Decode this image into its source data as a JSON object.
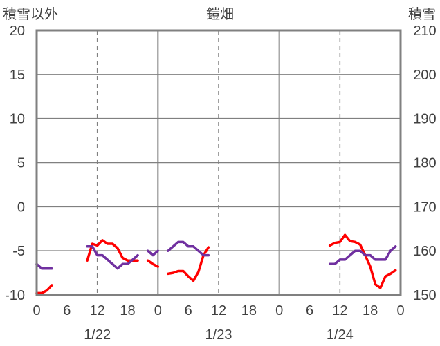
{
  "chart_data": {
    "type": "line",
    "title": "鎧畑",
    "ylabel_left": "積雪以外",
    "ylabel_right": "積雪",
    "ylim_left": [
      -10,
      20
    ],
    "ylim_right": [
      150,
      210
    ],
    "yticks_left": [
      "20",
      "15",
      "10",
      "5",
      "0",
      "-5",
      "-10"
    ],
    "yticks_right": [
      "210",
      "200",
      "190",
      "180",
      "170",
      "160",
      "150"
    ],
    "xlim": [
      0,
      72
    ],
    "xticks": [
      {
        "x": 0,
        "label": "0"
      },
      {
        "x": 6,
        "label": "6"
      },
      {
        "x": 12,
        "label": "12"
      },
      {
        "x": 18,
        "label": "18"
      },
      {
        "x": 24,
        "label": "0"
      },
      {
        "x": 30,
        "label": "6"
      },
      {
        "x": 36,
        "label": "12"
      },
      {
        "x": 42,
        "label": "18"
      },
      {
        "x": 48,
        "label": "0"
      },
      {
        "x": 54,
        "label": "6"
      },
      {
        "x": 60,
        "label": "12"
      },
      {
        "x": 66,
        "label": "18"
      },
      {
        "x": 72,
        "label": "0"
      }
    ],
    "date_labels": [
      {
        "x": 12,
        "label": "1/22"
      },
      {
        "x": 36,
        "label": "1/23"
      },
      {
        "x": 60,
        "label": "1/24"
      }
    ],
    "grid": true,
    "series": [
      {
        "axis": "left",
        "color": "#ff0000",
        "segments": [
          [
            [
              0,
              -9.8
            ],
            [
              1,
              -9.8
            ],
            [
              2,
              -9.5
            ],
            [
              3,
              -8.9
            ]
          ],
          [
            [
              10,
              -6.1
            ],
            [
              11,
              -4.2
            ],
            [
              12,
              -4.4
            ],
            [
              13,
              -3.8
            ],
            [
              14,
              -4.2
            ],
            [
              15,
              -4.2
            ],
            [
              16,
              -4.7
            ],
            [
              17,
              -5.8
            ],
            [
              18,
              -6.1
            ],
            [
              19,
              -6.1
            ],
            [
              20,
              -6.1
            ]
          ],
          [
            [
              22,
              -6.1
            ],
            [
              23,
              -6.5
            ],
            [
              24,
              -6.8
            ]
          ],
          [
            [
              26,
              -7.6
            ],
            [
              27,
              -7.5
            ],
            [
              28,
              -7.3
            ],
            [
              29,
              -7.3
            ],
            [
              30,
              -7.9
            ],
            [
              31,
              -8.4
            ],
            [
              32,
              -7.4
            ],
            [
              33,
              -5.5
            ],
            [
              34,
              -4.6
            ]
          ],
          [
            [
              58,
              -4.4
            ],
            [
              59,
              -4.1
            ],
            [
              60,
              -4.0
            ],
            [
              61,
              -3.2
            ],
            [
              62,
              -3.9
            ],
            [
              63,
              -4.0
            ],
            [
              64,
              -4.3
            ],
            [
              65,
              -5.5
            ],
            [
              66,
              -6.8
            ],
            [
              67,
              -8.8
            ],
            [
              68,
              -9.2
            ],
            [
              69,
              -7.9
            ],
            [
              70,
              -7.6
            ],
            [
              71,
              -7.2
            ]
          ]
        ]
      },
      {
        "axis": "right",
        "color": "#7030a0",
        "segments": [
          [
            [
              0,
              157
            ],
            [
              1,
              156
            ],
            [
              2,
              156
            ],
            [
              3,
              156
            ]
          ],
          [
            [
              10,
              161
            ],
            [
              11,
              161
            ],
            [
              12,
              159
            ],
            [
              13,
              159
            ],
            [
              14,
              158
            ],
            [
              15,
              157
            ],
            [
              16,
              156
            ],
            [
              17,
              157
            ],
            [
              18,
              157
            ],
            [
              19,
              158
            ],
            [
              20,
              159
            ]
          ],
          [
            [
              22,
              160
            ],
            [
              23,
              159
            ],
            [
              24,
              160
            ]
          ],
          [
            [
              26,
              160
            ],
            [
              27,
              161
            ],
            [
              28,
              162
            ],
            [
              29,
              162
            ],
            [
              30,
              161
            ],
            [
              31,
              161
            ],
            [
              32,
              160
            ],
            [
              33,
              159
            ],
            [
              34,
              159
            ]
          ],
          [
            [
              58,
              157
            ],
            [
              59,
              157
            ],
            [
              60,
              158
            ],
            [
              61,
              158
            ],
            [
              62,
              159
            ],
            [
              63,
              160
            ],
            [
              64,
              160
            ],
            [
              65,
              159
            ],
            [
              66,
              159
            ],
            [
              67,
              158
            ],
            [
              68,
              158
            ],
            [
              69,
              158
            ],
            [
              70,
              160
            ],
            [
              71,
              161
            ]
          ]
        ]
      }
    ]
  }
}
